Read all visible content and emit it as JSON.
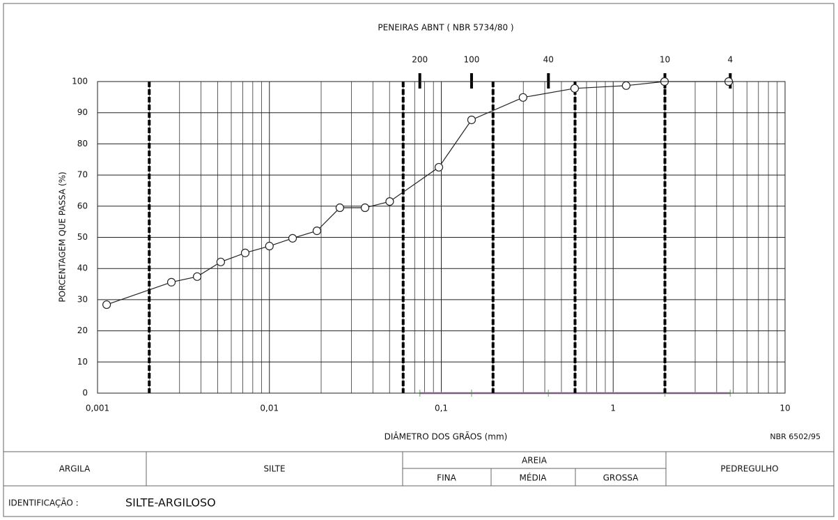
{
  "chart_data": {
    "type": "line",
    "title": "PENEIRAS ABNT ( NBR 5734/80 )",
    "x_label": "DIÂMETRO DOS GRÃOS (mm)",
    "y_label": "PORCENTAGEM QUE PASSA (%)",
    "norm": "NBR 6502/95",
    "x_scale": "log",
    "x": [
      0.00113,
      0.00269,
      0.0038,
      0.00521,
      0.00723,
      0.01,
      0.01364,
      0.0189,
      0.0257,
      0.036,
      0.0501,
      0.0968,
      0.15,
      0.299,
      0.597,
      1.19,
      1.99,
      4.7
    ],
    "values": [
      28.4,
      35.6,
      37.4,
      42.1,
      45.0,
      47.2,
      49.7,
      52.1,
      59.5,
      59.5,
      61.5,
      72.5,
      87.7,
      94.9,
      97.8,
      98.7,
      100,
      100
    ],
    "color": "#222222",
    "xlim": [
      0.001,
      10
    ],
    "xticks": [
      {
        "value": 0.001,
        "label": "0,001"
      },
      {
        "value": 0.01,
        "label": "0,01"
      },
      {
        "value": 0.1,
        "label": "0,1"
      },
      1,
      10
    ],
    "ylim": [
      0,
      100
    ],
    "yticks": [
      0,
      10,
      20,
      30,
      40,
      50,
      60,
      70,
      80,
      90,
      100
    ],
    "grid": true,
    "boundaries": [
      0.002,
      0.06,
      0.2,
      0.6,
      2
    ],
    "sieves": {
      "names": [
        200,
        100,
        40,
        10,
        4
      ],
      "diameters": [
        0.075,
        0.15,
        0.42,
        2.0,
        4.8
      ]
    }
  },
  "classification": {
    "clay": "ARGILA",
    "silt": "SILTE",
    "sand": "AREIA",
    "sand_parts": [
      "FINA",
      "MÉDIA",
      "GROSSA"
    ],
    "gravel": "PEDREGULHO"
  },
  "identification": {
    "label": "IDENTIFICAÇÃO :",
    "value": "SILTE-ARGILOSO"
  }
}
